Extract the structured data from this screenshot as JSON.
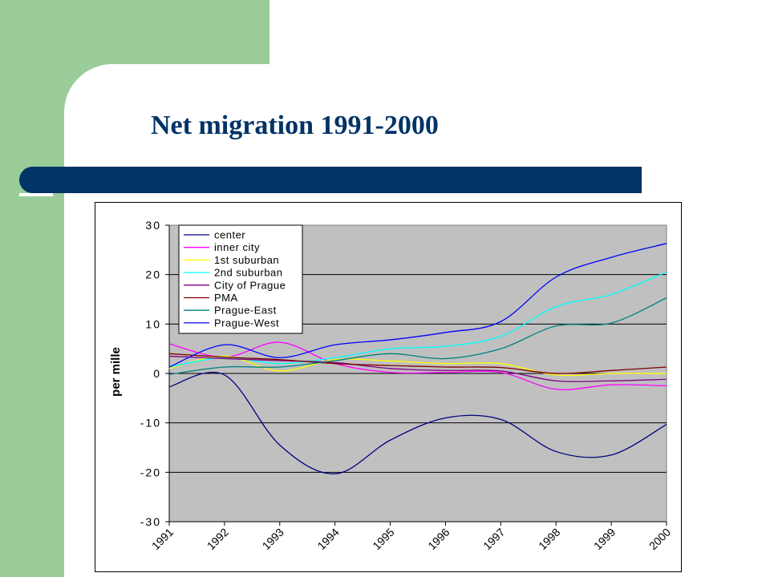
{
  "slide": {
    "title": "Net migration 1991-2000"
  },
  "chart_data": {
    "type": "line",
    "title": "",
    "xlabel": "",
    "ylabel": "per mille",
    "ylim": [
      -30,
      30
    ],
    "yticks": [
      30,
      20,
      10,
      0,
      -10,
      -20,
      -30
    ],
    "grid": true,
    "legend_position": "top-left",
    "x": [
      "1991",
      "1992",
      "1993",
      "1994",
      "1995",
      "1996",
      "1997",
      "1998",
      "1999",
      "2000"
    ],
    "series": [
      {
        "name": "center",
        "color": "#000080",
        "values": [
          -2.7,
          -0.3,
          -14.5,
          -20.3,
          -13.5,
          -9.0,
          -9.3,
          -15.8,
          -16.5,
          -10.3
        ]
      },
      {
        "name": "inner city",
        "color": "#ff00ff",
        "values": [
          6.0,
          3.3,
          6.3,
          2.0,
          0.2,
          0.2,
          0.2,
          -3.2,
          -2.3,
          -2.5
        ]
      },
      {
        "name": "1st suburban",
        "color": "#ffff00",
        "values": [
          1.0,
          3.5,
          0.5,
          2.8,
          2.5,
          2.0,
          2.0,
          -0.3,
          0.0,
          0.0
        ]
      },
      {
        "name": "2nd suburban",
        "color": "#00ffff",
        "values": [
          1.3,
          3.2,
          2.0,
          3.2,
          5.0,
          5.5,
          7.5,
          13.5,
          16.0,
          20.5
        ]
      },
      {
        "name": "City of Prague",
        "color": "#800080",
        "values": [
          3.5,
          3.0,
          2.6,
          2.2,
          1.0,
          0.6,
          0.5,
          -1.5,
          -1.5,
          -1.2
        ]
      },
      {
        "name": "PMA",
        "color": "#800000",
        "values": [
          4.0,
          3.3,
          2.8,
          2.0,
          1.6,
          1.3,
          1.2,
          0.0,
          0.6,
          1.3
        ]
      },
      {
        "name": "Prague-East",
        "color": "#008080",
        "values": [
          -0.2,
          1.3,
          1.3,
          2.6,
          4.0,
          3.0,
          5.0,
          9.6,
          10.2,
          15.3
        ]
      },
      {
        "name": "Prague-West",
        "color": "#0000ff",
        "values": [
          1.3,
          5.8,
          3.2,
          5.8,
          6.8,
          8.3,
          10.5,
          19.5,
          23.5,
          26.3
        ]
      }
    ]
  }
}
